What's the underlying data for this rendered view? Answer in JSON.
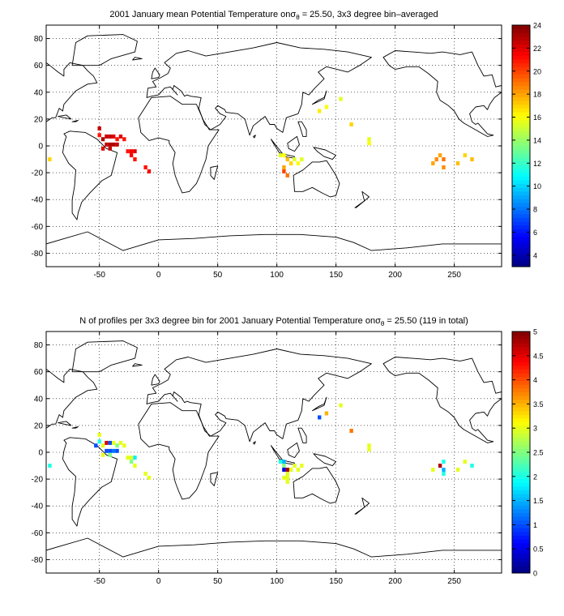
{
  "chart_data": [
    {
      "type": "heatmap",
      "title": "2001 January mean Potential Temperature onσθ = 25.50, 3x3 degree bin–averaged",
      "title_parts": {
        "prefix": "2001 January mean Potential Temperature onσ",
        "subscript": "θ",
        "suffix": " = 25.50, 3x3 degree bin–averaged"
      },
      "xlabel": "",
      "ylabel": "",
      "xlim": [
        -95,
        290
      ],
      "ylim": [
        -90,
        90
      ],
      "xticks": [
        -50,
        0,
        50,
        100,
        150,
        200,
        250
      ],
      "yticks": [
        -80,
        -60,
        -40,
        -20,
        0,
        20,
        40,
        60,
        80
      ],
      "grid": true,
      "colorbar": {
        "min": 3,
        "max": 24,
        "ticks": [
          4,
          6,
          8,
          10,
          12,
          14,
          16,
          18,
          20,
          22,
          24
        ],
        "colormap": "jet"
      },
      "cells": [
        {
          "x": -92,
          "y": -10,
          "v": 17
        },
        {
          "x": -50,
          "y": 13,
          "v": 22.5
        },
        {
          "x": -50,
          "y": 8,
          "v": 21
        },
        {
          "x": -47,
          "y": 5,
          "v": 23
        },
        {
          "x": -44,
          "y": 7,
          "v": 22.5
        },
        {
          "x": -41,
          "y": 7,
          "v": 22.5
        },
        {
          "x": -38,
          "y": 7,
          "v": 22
        },
        {
          "x": -35,
          "y": 5,
          "v": 21
        },
        {
          "x": -32,
          "y": 7,
          "v": 22
        },
        {
          "x": -29,
          "y": 5,
          "v": 21
        },
        {
          "x": -44,
          "y": 1,
          "v": 22.5
        },
        {
          "x": -41,
          "y": 1,
          "v": 23
        },
        {
          "x": -38,
          "y": 1,
          "v": 23
        },
        {
          "x": -35,
          "y": 1,
          "v": 22.5
        },
        {
          "x": -47,
          "y": -2,
          "v": 22
        },
        {
          "x": -41,
          "y": -2,
          "v": 22.5
        },
        {
          "x": -26,
          "y": -4,
          "v": 21
        },
        {
          "x": -23,
          "y": -4,
          "v": 21.5
        },
        {
          "x": -20,
          "y": -4,
          "v": 22
        },
        {
          "x": -23,
          "y": -7,
          "v": 21.5
        },
        {
          "x": -20,
          "y": -10,
          "v": 21
        },
        {
          "x": -11,
          "y": -16,
          "v": 21
        },
        {
          "x": -8,
          "y": -19,
          "v": 21.5
        },
        {
          "x": 103,
          "y": -7,
          "v": 15.5
        },
        {
          "x": 106,
          "y": -7,
          "v": 16
        },
        {
          "x": 109,
          "y": -10,
          "v": 17.5
        },
        {
          "x": 112,
          "y": -13,
          "v": 17
        },
        {
          "x": 106,
          "y": -16,
          "v": 18
        },
        {
          "x": 106,
          "y": -19,
          "v": 20
        },
        {
          "x": 109,
          "y": -22,
          "v": 19
        },
        {
          "x": 115,
          "y": -10,
          "v": 15.5
        },
        {
          "x": 118,
          "y": -13,
          "v": 16
        },
        {
          "x": 121,
          "y": -10,
          "v": 15.5
        },
        {
          "x": 136,
          "y": 26,
          "v": 16.5
        },
        {
          "x": 142,
          "y": 29,
          "v": 16
        },
        {
          "x": 154,
          "y": 35,
          "v": 15.5
        },
        {
          "x": 163,
          "y": 16,
          "v": 17
        },
        {
          "x": 178,
          "y": 5,
          "v": 15.5
        },
        {
          "x": 178,
          "y": 2,
          "v": 16
        },
        {
          "x": 232,
          "y": -13,
          "v": 18
        },
        {
          "x": 235,
          "y": -10,
          "v": 18.5
        },
        {
          "x": 238,
          "y": -7,
          "v": 18
        },
        {
          "x": 241,
          "y": -10,
          "v": 19
        },
        {
          "x": 241,
          "y": -16,
          "v": 18.5
        },
        {
          "x": 253,
          "y": -13,
          "v": 17.5
        },
        {
          "x": 259,
          "y": -7,
          "v": 17
        },
        {
          "x": 265,
          "y": -10,
          "v": 17.5
        }
      ]
    },
    {
      "type": "heatmap",
      "title": "N of profiles per 3x3 degree bin for 2001 January Potential Temperature onσθ = 25.50 (119 in total)",
      "title_parts": {
        "prefix": "N of profiles per 3x3 degree bin for 2001 January Potential Temperature onσ",
        "subscript": "θ",
        "suffix": " = 25.50 (119 in total)"
      },
      "xlabel": "",
      "ylabel": "",
      "xlim": [
        -95,
        290
      ],
      "ylim": [
        -90,
        90
      ],
      "xticks": [
        -50,
        0,
        50,
        100,
        150,
        200,
        250
      ],
      "yticks": [
        -80,
        -60,
        -40,
        -20,
        0,
        20,
        40,
        60,
        80
      ],
      "grid": true,
      "colorbar": {
        "min": 0,
        "max": 5,
        "ticks": [
          0,
          0.5,
          1,
          1.5,
          2,
          2.5,
          3,
          3.5,
          4,
          4.5,
          5
        ],
        "colormap": "jet"
      },
      "cells": [
        {
          "x": -92,
          "y": -10,
          "v": 2
        },
        {
          "x": -53,
          "y": 5,
          "v": 1
        },
        {
          "x": -50,
          "y": 13,
          "v": 3
        },
        {
          "x": -50,
          "y": 8,
          "v": 2
        },
        {
          "x": -47,
          "y": 5,
          "v": 3
        },
        {
          "x": -44,
          "y": 7,
          "v": 4.6
        },
        {
          "x": -41,
          "y": 7,
          "v": 1
        },
        {
          "x": -38,
          "y": 7,
          "v": 3
        },
        {
          "x": -35,
          "y": 5,
          "v": 2.5
        },
        {
          "x": -32,
          "y": 7,
          "v": 3
        },
        {
          "x": -29,
          "y": 5,
          "v": 3
        },
        {
          "x": -44,
          "y": 1,
          "v": 1
        },
        {
          "x": -41,
          "y": 1,
          "v": 1
        },
        {
          "x": -38,
          "y": 1,
          "v": 1.2
        },
        {
          "x": -35,
          "y": 1,
          "v": 1
        },
        {
          "x": -47,
          "y": -2,
          "v": 3
        },
        {
          "x": -41,
          "y": -2,
          "v": 2.5
        },
        {
          "x": -26,
          "y": -4,
          "v": 3
        },
        {
          "x": -23,
          "y": -4,
          "v": 3
        },
        {
          "x": -20,
          "y": -4,
          "v": 1.8
        },
        {
          "x": -23,
          "y": -7,
          "v": 2.5
        },
        {
          "x": -20,
          "y": -10,
          "v": 3
        },
        {
          "x": -11,
          "y": -16,
          "v": 3
        },
        {
          "x": -8,
          "y": -19,
          "v": 3
        },
        {
          "x": 103,
          "y": -7,
          "v": 2
        },
        {
          "x": 106,
          "y": -7,
          "v": 1.5
        },
        {
          "x": 106,
          "y": -10,
          "v": 2.5
        },
        {
          "x": 106,
          "y": -13,
          "v": 0.5
        },
        {
          "x": 109,
          "y": -13,
          "v": 4.8
        },
        {
          "x": 112,
          "y": -13,
          "v": 3
        },
        {
          "x": 109,
          "y": -16,
          "v": 3
        },
        {
          "x": 109,
          "y": -19,
          "v": 3
        },
        {
          "x": 106,
          "y": -19,
          "v": 3
        },
        {
          "x": 109,
          "y": -22,
          "v": 3
        },
        {
          "x": 115,
          "y": -10,
          "v": 3
        },
        {
          "x": 118,
          "y": -13,
          "v": 3
        },
        {
          "x": 121,
          "y": -10,
          "v": 3
        },
        {
          "x": 136,
          "y": 26,
          "v": 1
        },
        {
          "x": 142,
          "y": 29,
          "v": 3.5
        },
        {
          "x": 154,
          "y": 35,
          "v": 3
        },
        {
          "x": 163,
          "y": 16,
          "v": 3.8
        },
        {
          "x": 178,
          "y": 5,
          "v": 3
        },
        {
          "x": 178,
          "y": 2,
          "v": 3
        },
        {
          "x": 232,
          "y": -13,
          "v": 3
        },
        {
          "x": 238,
          "y": -10,
          "v": 4.8
        },
        {
          "x": 241,
          "y": -7,
          "v": 2
        },
        {
          "x": 241,
          "y": -13,
          "v": 1.5
        },
        {
          "x": 241,
          "y": -16,
          "v": 2
        },
        {
          "x": 253,
          "y": -13,
          "v": 3
        },
        {
          "x": 259,
          "y": -7,
          "v": 3
        },
        {
          "x": 265,
          "y": -10,
          "v": 2
        }
      ]
    }
  ]
}
